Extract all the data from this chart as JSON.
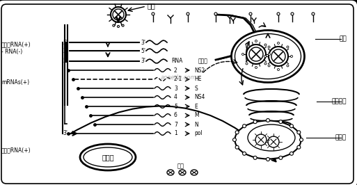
{
  "bg_color": "#ffffff",
  "black": "#000000",
  "gray": "#888888",
  "labels": {
    "receptor": "受体",
    "genomic_rna_plus1": "基因组RNA(+)",
    "minus_rna": "- RNA(-)",
    "mrnas": "mRNAs(+)",
    "genomic_rna_plus2": "基因组RNA(+)",
    "nucleus": "细胞核",
    "nucleic_acid": "核酸",
    "vesicle": "囊泡",
    "golgi": "高尔基体",
    "er": "内质网",
    "protein": "蛋白质",
    "rna_label": "RNA",
    "watermark": "aooedu.com"
  },
  "rna_entries": [
    {
      "num": "2",
      "protein": "NS2",
      "dashed": false,
      "short": false
    },
    {
      "num": "2-1",
      "protein": "HE",
      "dashed": true,
      "short": false
    },
    {
      "num": "3",
      "protein": "S",
      "dashed": false,
      "short": true
    },
    {
      "num": "4",
      "protein": "NS4",
      "dashed": false,
      "short": true
    },
    {
      "num": "5",
      "protein": "E",
      "dashed": false,
      "short": true
    },
    {
      "num": "6",
      "protein": "M",
      "dashed": false,
      "short": true
    },
    {
      "num": "7",
      "protein": "N",
      "dashed": false,
      "short": true
    },
    {
      "num": "1",
      "protein": "pol",
      "dashed": false,
      "short": false
    }
  ],
  "prime5": "5'",
  "prime3": "3'",
  "fig_width": 5.13,
  "fig_height": 2.66,
  "dpi": 100
}
